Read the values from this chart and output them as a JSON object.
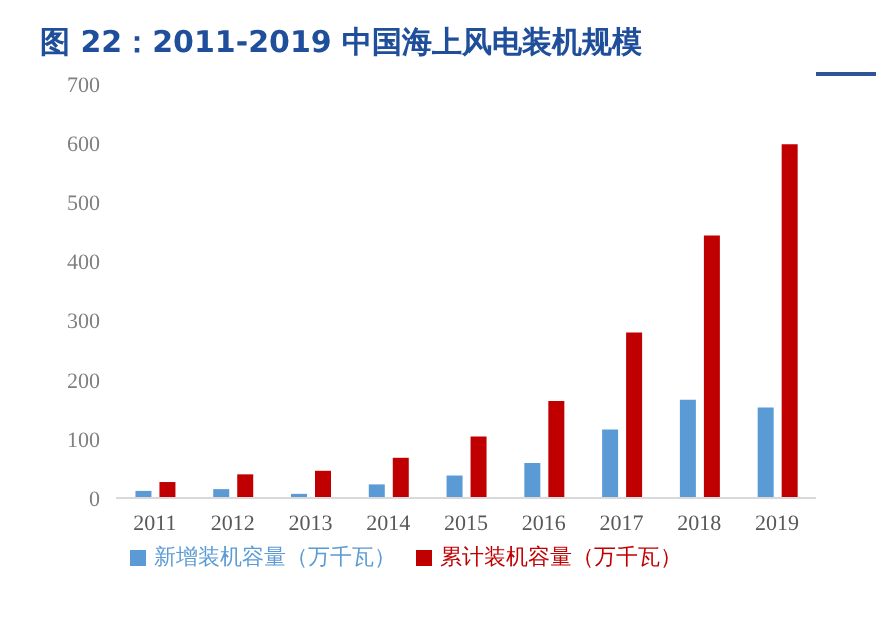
{
  "chart_data": {
    "type": "bar",
    "title": "图 22：2011-2019 中国海上风电装机规模",
    "categories": [
      "2011",
      "2012",
      "2013",
      "2014",
      "2015",
      "2016",
      "2017",
      "2018",
      "2019"
    ],
    "series": [
      {
        "name": "新增装机容量（万千瓦）",
        "color": "#5b9bd5",
        "values": [
          12,
          15,
          7,
          23,
          38,
          59,
          116,
          166,
          153
        ]
      },
      {
        "name": "累计装机容量（万千瓦）",
        "color": "#c00000",
        "values": [
          27,
          40,
          46,
          68,
          104,
          164,
          280,
          444,
          598
        ]
      }
    ],
    "ylim": [
      0,
      700
    ],
    "yticks": [
      0,
      100,
      200,
      300,
      400,
      500,
      600,
      700
    ],
    "grid": false,
    "legend": "bottom"
  }
}
